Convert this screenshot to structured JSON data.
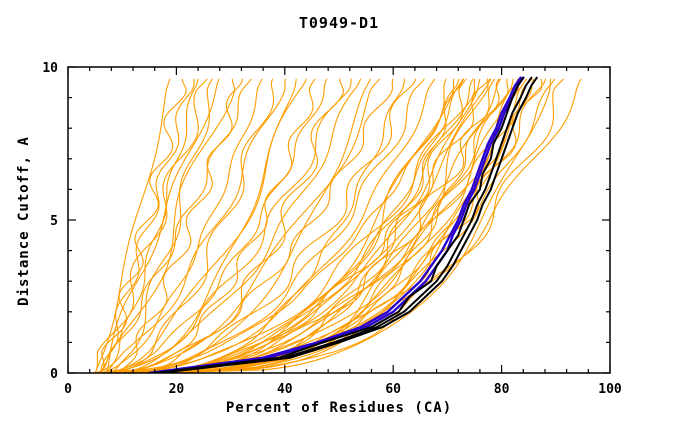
{
  "chart_data": {
    "type": "line",
    "title": "T0949-D1",
    "xlabel": "Percent of Residues (CA)",
    "ylabel": "Distance Cutoff, A",
    "xlim": [
      0,
      100
    ],
    "ylim": [
      0,
      10
    ],
    "x_ticks": [
      0,
      20,
      40,
      60,
      80,
      100
    ],
    "y_ticks": [
      0,
      5,
      10
    ],
    "x_minor_step": 4,
    "y_minor_step": 1,
    "grid": false,
    "legend": "none",
    "curve_y_max": 9.65,
    "colors": {
      "ensemble": "#ff9d00",
      "best": "#000000",
      "highlight": "#2a00cc",
      "axis": "#000000",
      "background": "#ffffff",
      "text": "#000000"
    },
    "ensemble_param_format": "[x_at_y0, x_at_ytop, shape_exponent] where x(y)=x0+(x1-x0)*(y/ymax)^p",
    "ensemble_curves": [
      [
        5,
        19,
        0.9
      ],
      [
        6,
        21,
        0.85
      ],
      [
        6,
        23,
        0.95
      ],
      [
        7,
        24,
        0.8
      ],
      [
        5,
        26,
        0.9
      ],
      [
        8,
        27,
        0.7
      ],
      [
        6,
        28,
        1.0
      ],
      [
        7,
        30,
        0.85
      ],
      [
        9,
        32,
        0.75
      ],
      [
        6,
        34,
        0.9
      ],
      [
        6,
        36,
        0.6
      ],
      [
        8,
        38,
        0.55
      ],
      [
        5,
        40,
        0.65
      ],
      [
        9,
        42,
        0.5
      ],
      [
        7,
        44,
        0.6
      ],
      [
        10,
        46,
        0.5
      ],
      [
        6,
        48,
        0.55
      ],
      [
        11,
        50,
        0.45
      ],
      [
        8,
        52,
        0.6
      ],
      [
        5,
        54,
        0.5
      ],
      [
        12,
        56,
        0.45
      ],
      [
        9,
        58,
        0.55
      ],
      [
        7,
        60,
        0.5
      ],
      [
        13,
        62,
        0.4
      ],
      [
        10,
        64,
        0.5
      ],
      [
        8,
        66,
        0.45
      ],
      [
        6,
        68,
        0.4
      ],
      [
        11,
        70,
        0.35
      ],
      [
        9,
        71,
        0.38
      ],
      [
        14,
        72,
        0.3
      ],
      [
        7,
        73,
        0.36
      ],
      [
        12,
        74,
        0.32
      ],
      [
        10,
        75,
        0.4
      ],
      [
        5,
        76,
        0.34
      ],
      [
        13,
        77,
        0.3
      ],
      [
        8,
        78,
        0.38
      ],
      [
        15,
        79,
        0.3
      ],
      [
        6,
        80,
        0.35
      ],
      [
        11,
        81,
        0.32
      ],
      [
        9,
        82,
        0.36
      ],
      [
        14,
        83,
        0.28
      ],
      [
        7,
        84,
        0.34
      ],
      [
        12,
        85,
        0.3
      ],
      [
        10,
        86,
        0.33
      ],
      [
        8,
        87,
        0.3
      ],
      [
        13,
        88,
        0.36
      ],
      [
        6,
        90,
        0.32
      ],
      [
        11,
        92,
        0.3
      ],
      [
        9,
        95,
        0.34
      ],
      [
        16,
        89,
        0.28
      ],
      [
        5,
        73,
        0.45
      ],
      [
        10,
        78,
        0.42
      ],
      [
        7,
        86,
        0.4
      ],
      [
        12,
        80,
        0.38
      ],
      [
        8,
        75,
        0.44
      ],
      [
        6,
        83,
        0.3
      ]
    ],
    "y_samples": [
      0,
      0.5,
      1,
      1.5,
      2,
      2.5,
      3,
      3.5,
      4,
      4.5,
      5,
      5.5,
      6,
      6.5,
      7,
      7.5,
      8,
      8.5,
      9,
      9.4,
      9.65
    ],
    "best_curves": [
      {
        "label": "best-model-1",
        "x": [
          16,
          39,
          47,
          56,
          61,
          63,
          67,
          68,
          70,
          72,
          73,
          74,
          76,
          76.5,
          78,
          78.5,
          80,
          81,
          82,
          83,
          84
        ]
      },
      {
        "label": "best-model-2",
        "x": [
          16.5,
          40,
          49,
          57,
          62,
          65,
          68,
          70,
          71.5,
          73,
          74.5,
          75.5,
          77,
          78,
          79,
          80,
          81,
          82,
          83.5,
          84.5,
          85.5
        ]
      },
      {
        "label": "best-model-3",
        "x": [
          17,
          41,
          50,
          58,
          63,
          66,
          69,
          71,
          72.5,
          74,
          75.5,
          76.5,
          78,
          79,
          80,
          81,
          82,
          83,
          84.5,
          85.5,
          86.5
        ]
      }
    ],
    "highlight_curves": [
      {
        "label": "highlighted-model-1",
        "x": [
          15,
          36,
          46,
          54,
          59,
          62,
          65,
          67,
          69,
          70.5,
          72,
          73,
          74.5,
          75.5,
          76.5,
          77.5,
          79,
          80,
          81.5,
          82.5,
          83.5
        ]
      },
      {
        "label": "highlighted-model-2",
        "x": [
          16,
          37,
          47,
          55,
          60,
          63,
          66,
          68,
          70,
          71,
          72.5,
          73.5,
          75,
          76,
          77,
          78,
          79.5,
          80.5,
          82,
          83,
          84
        ]
      }
    ]
  }
}
